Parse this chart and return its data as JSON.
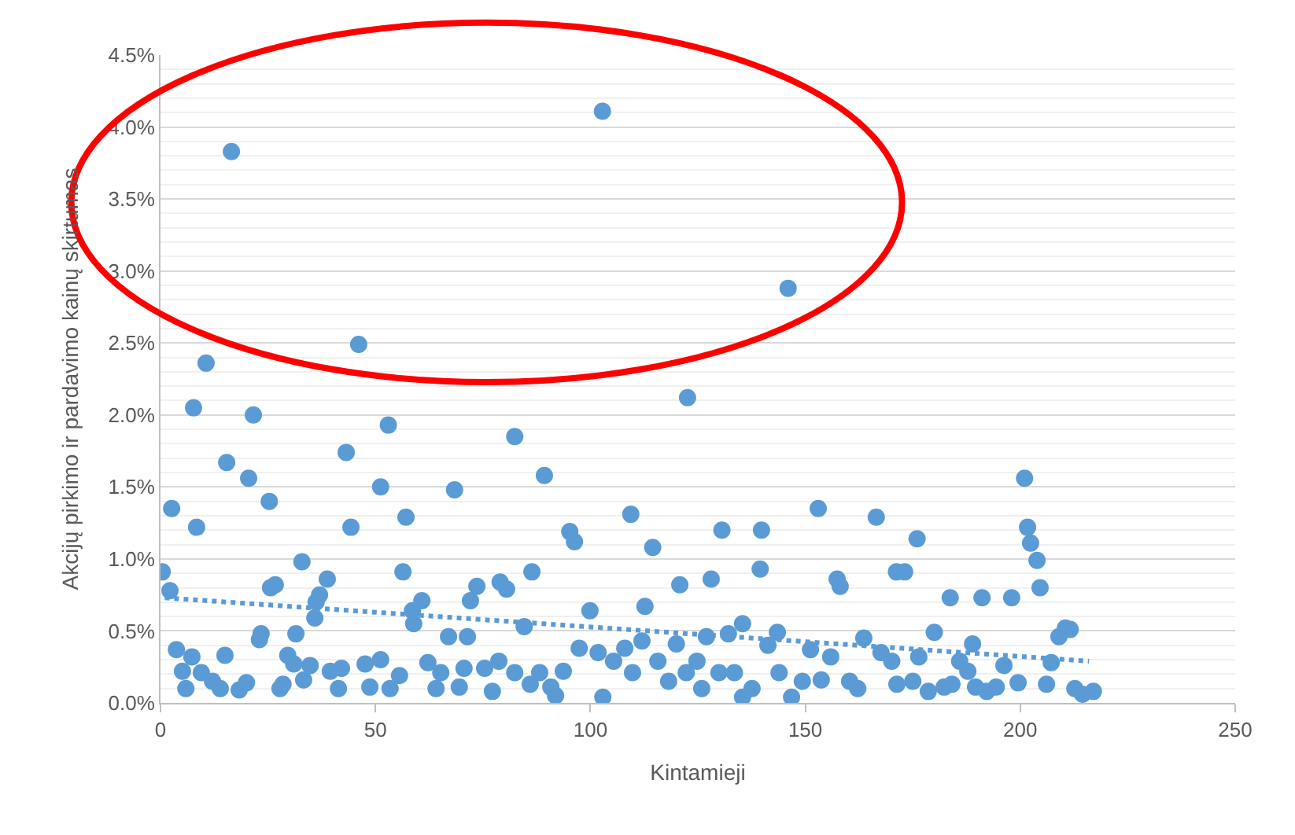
{
  "chart_data": {
    "type": "scatter",
    "xlabel": "Kintamieji",
    "ylabel": "Akcijų pirkimo ir pardavimo kainų skirtumas",
    "xlim": [
      0,
      250
    ],
    "xticks": [
      0,
      50,
      100,
      150,
      200,
      250
    ],
    "ylim": [
      0,
      4.5
    ],
    "yticks": [
      {
        "value": 0,
        "label": "0.0%"
      },
      {
        "value": 0.5,
        "label": "0.5%"
      },
      {
        "value": 1,
        "label": "1.0%"
      },
      {
        "value": 1.5,
        "label": "1.5%"
      },
      {
        "value": 2,
        "label": "2.0%"
      },
      {
        "value": 2.5,
        "label": "2.5%"
      },
      {
        "value": 3,
        "label": "3.0%"
      },
      {
        "value": 3.5,
        "label": "3.5%"
      },
      {
        "value": 4,
        "label": "4.0%"
      },
      {
        "value": 4.5,
        "label": "4.5%"
      }
    ],
    "grid": "y",
    "marker": "circle",
    "series": [
      {
        "color": "#5b9bd5",
        "x": [
          0.4,
          2.2,
          2.6,
          3.7,
          5.1,
          7.3,
          5.9,
          7.7,
          8.4,
          10.6,
          9.5,
          12.1,
          13.9,
          15,
          15.4,
          16.5,
          18.3,
          20,
          20.5,
          21.6,
          23,
          23.4,
          25.3,
          25.6,
          26.7,
          27.8,
          28.5,
          29.6,
          31,
          31.5,
          32.9,
          33.3,
          34.8,
          35.9,
          36.2,
          37,
          38.8,
          39.5,
          41.4,
          42.1,
          43.2,
          44.3,
          46.1,
          47.6,
          48.7,
          51.2,
          51.2,
          53,
          53.4,
          55.6,
          56.4,
          57.1,
          58.6,
          58.9,
          60.8,
          62.2,
          64.1,
          65.2,
          67,
          68.4,
          69.5,
          70.6,
          71.4,
          72.1,
          73.6,
          75.4,
          77.2,
          78.7,
          79,
          80.5,
          82.4,
          82.4,
          84.6,
          86.4,
          86,
          88.2,
          89.3,
          90.8,
          91.9,
          93.7,
          95.2,
          96.3,
          97.4,
          99.9,
          101.8,
          102.8,
          102.9,
          105.4,
          108,
          109.4,
          109.8,
          112,
          112.7,
          114.5,
          115.7,
          118.2,
          120,
          120.8,
          122.6,
          122.3,
          124.8,
          125.9,
          127,
          128.1,
          129.9,
          130.6,
          132.1,
          133.5,
          135.4,
          135.4,
          137.6,
          139.5,
          139.8,
          141.3,
          143.5,
          143.9,
          146,
          146.8,
          149.3,
          151.2,
          153,
          153.7,
          155.9,
          157.4,
          158.1,
          160.3,
          162.2,
          163.6,
          166.5,
          167.6,
          170.1,
          171.2,
          171.3,
          173.1,
          175,
          176,
          176.4,
          178.6,
          180,
          182.3,
          183.7,
          184.1,
          185.9,
          187.8,
          188.9,
          189.6,
          191.1,
          192.2,
          194.4,
          196.2,
          198,
          199.5,
          201,
          201.7,
          202.4,
          203.9,
          204.6,
          206.1,
          207.2,
          209,
          210.5,
          211.6,
          212.7,
          214.5,
          217
        ],
        "values": [
          0.91,
          0.78,
          1.35,
          0.37,
          0.22,
          0.32,
          0.1,
          2.05,
          1.22,
          2.36,
          0.21,
          0.15,
          0.1,
          0.33,
          1.67,
          3.83,
          0.09,
          0.14,
          1.56,
          2.0,
          0.44,
          0.48,
          1.4,
          0.8,
          0.82,
          0.1,
          0.13,
          0.33,
          0.27,
          0.48,
          0.98,
          0.16,
          0.26,
          0.59,
          0.7,
          0.75,
          0.86,
          0.22,
          0.1,
          0.24,
          1.74,
          1.22,
          2.49,
          0.27,
          0.11,
          0.3,
          1.5,
          1.93,
          0.1,
          0.19,
          0.91,
          1.29,
          0.64,
          0.55,
          0.71,
          0.28,
          0.1,
          0.21,
          0.46,
          1.48,
          0.11,
          0.24,
          0.46,
          0.71,
          0.81,
          0.24,
          0.08,
          0.29,
          0.84,
          0.79,
          1.85,
          0.21,
          0.53,
          0.91,
          0.13,
          0.21,
          1.58,
          0.11,
          0.05,
          0.22,
          1.19,
          1.12,
          0.38,
          0.64,
          0.35,
          4.11,
          0.04,
          0.29,
          0.38,
          1.31,
          0.21,
          0.43,
          0.67,
          1.08,
          0.29,
          0.15,
          0.41,
          0.82,
          2.12,
          0.21,
          0.29,
          0.1,
          0.46,
          0.86,
          0.21,
          1.2,
          0.48,
          0.21,
          0.55,
          0.04,
          0.1,
          0.93,
          1.2,
          0.4,
          0.49,
          0.21,
          2.88,
          0.04,
          0.15,
          0.37,
          1.35,
          0.16,
          0.32,
          0.86,
          0.81,
          0.15,
          0.1,
          0.45,
          1.29,
          0.35,
          0.29,
          0.91,
          0.13,
          0.91,
          0.15,
          1.14,
          0.32,
          0.08,
          0.49,
          0.11,
          0.73,
          0.13,
          0.29,
          0.22,
          0.41,
          0.11,
          0.73,
          0.08,
          0.11,
          0.26,
          0.73,
          0.14,
          1.56,
          1.22,
          1.11,
          0.99,
          0.8,
          0.13,
          0.28,
          0.46,
          0.52,
          0.51,
          0.1,
          0.06,
          0.08
        ]
      },
      {
        "type": "line",
        "color": "#5b9bd5",
        "line_style": "dotted",
        "marker": "none",
        "x": [
          1,
          216
        ],
        "values": [
          0.73,
          0.29
        ]
      }
    ]
  }
}
